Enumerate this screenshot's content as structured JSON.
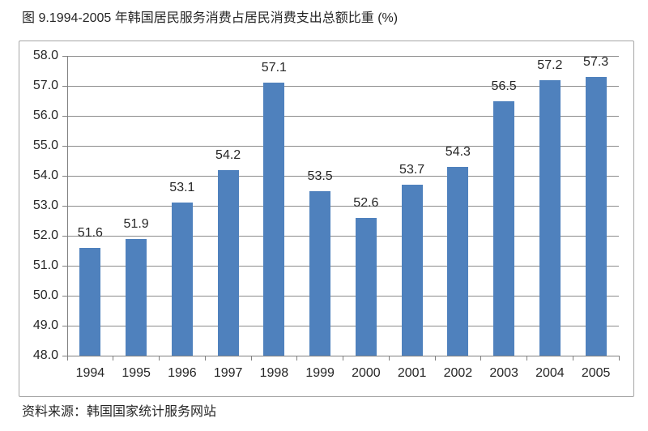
{
  "page": {
    "title": "图 9.1994-2005 年韩国居民服务消费占居民消费支出总额比重 (%)",
    "source": "资料来源：韩国国家统计服务网站"
  },
  "colors": {
    "bar": "#4F81BD",
    "gridline": "#8C8C8C",
    "axis": "#808080",
    "frame_border": "#A6A6A6",
    "text": "#262626",
    "background": "#FFFFFF"
  },
  "chart_data": {
    "type": "bar",
    "title": "图 9.1994-2005 年韩国居民服务消费占居民消费支出总额比重 (%)",
    "categories": [
      "1994",
      "1995",
      "1996",
      "1997",
      "1998",
      "1999",
      "2000",
      "2001",
      "2002",
      "2003",
      "2004",
      "2005"
    ],
    "values": [
      51.6,
      51.9,
      53.1,
      54.2,
      57.1,
      53.5,
      52.6,
      53.7,
      54.3,
      56.5,
      57.2,
      57.3
    ],
    "xlabel": "",
    "ylabel": "",
    "ylim": [
      48.0,
      58.0
    ],
    "ytick_step": 1.0,
    "ytick_format": "one_decimal",
    "grid": true,
    "legend": false,
    "data_labels": true,
    "source_note": "资料来源：韩国国家统计服务网站"
  }
}
